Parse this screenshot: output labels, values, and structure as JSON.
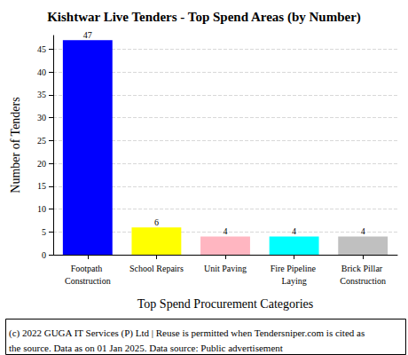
{
  "chart_data": {
    "type": "bar",
    "title": "Kishtwar Live Tenders - Top Spend Areas (by Number)",
    "x_label": "Top Spend Procurement Categories",
    "y_label": "Number of Tenders",
    "categories": [
      "Footpath Construction",
      "School Repairs",
      "Unit Paving",
      "Fire Pipeline Laying",
      "Brick Pillar Construction"
    ],
    "values": [
      47,
      6,
      4,
      4,
      4
    ],
    "colors": [
      "#0000ff",
      "#ffff00",
      "#ffb6c1",
      "#00ffff",
      "#c0c0c0"
    ],
    "ylim": [
      0,
      48
    ],
    "yticks": [
      0,
      5,
      10,
      15,
      20,
      25,
      30,
      35,
      40,
      45
    ],
    "grid": true,
    "data_labels": true,
    "annotations": [
      "(c) 2022 GUGA IT Services (P) Ltd | Reuse is permitted when Tendersniper.com is cited as the source. Data as on 01 Jan 2025. Data source: Public advertisement"
    ]
  }
}
